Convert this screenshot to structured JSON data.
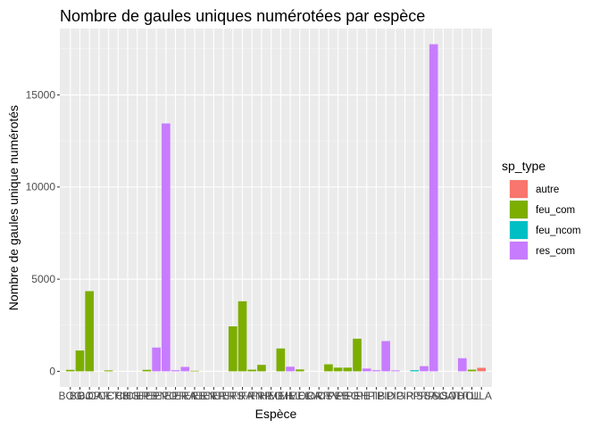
{
  "chart_data": {
    "type": "bar",
    "title": "Nombre de gaules uniques numérotées par espèce",
    "xlabel": "Espèce",
    "ylabel": "Nombre de gaules unique numérotés",
    "ylim": [
      -850,
      18600
    ],
    "y_ticks": [
      0,
      5000,
      10000,
      15000
    ],
    "y_tick_labels": [
      "0",
      "5000",
      "10000",
      "15000"
    ],
    "grid": true,
    "legend": {
      "title": "sp_type",
      "position": "right",
      "items": [
        {
          "key": "autre",
          "label": "autre",
          "color": "#F8766D"
        },
        {
          "key": "feu_com",
          "label": "feu_com",
          "color": "#7CAE00"
        },
        {
          "key": "feu_ncom",
          "label": "feu_ncom",
          "color": "#00BFC4"
        },
        {
          "key": "res_com",
          "label": "res_com",
          "color": "#C77CFF"
        }
      ]
    },
    "categories": [
      "BOG",
      "BOJ",
      "BOP",
      "CAF",
      "CET",
      "CHB",
      "CHG",
      "CHR",
      "EPB",
      "EPN",
      "EPO",
      "EPR",
      "ERA",
      "ERE",
      "ERN",
      "ERP",
      "ERR",
      "ERS",
      "FRA",
      "FRN",
      "FRP",
      "HEG",
      "MEH",
      "MEJ",
      "MEL",
      "ORA",
      "ORR",
      "OSV",
      "PEB",
      "PEG",
      "PEH",
      "PET",
      "PIB",
      "PID",
      "PIG",
      "PIR",
      "PIS",
      "PRP",
      "SAL",
      "SOA",
      "SOD",
      "THO",
      "TIL",
      "ULA"
    ],
    "bars": [
      {
        "category": "BOG",
        "value": 80,
        "type": "feu_com"
      },
      {
        "category": "BOJ",
        "value": 1130,
        "type": "feu_com"
      },
      {
        "category": "BOP",
        "value": 4350,
        "type": "feu_com"
      },
      {
        "category": "CAF",
        "value": 0,
        "type": "feu_com"
      },
      {
        "category": "CET",
        "value": 50,
        "type": "feu_com"
      },
      {
        "category": "CHB",
        "value": 0,
        "type": "feu_com"
      },
      {
        "category": "CHG",
        "value": 0,
        "type": "feu_com"
      },
      {
        "category": "CHR",
        "value": 0,
        "type": "feu_com"
      },
      {
        "category": "EPB",
        "value": 80,
        "type": "feu_com"
      },
      {
        "category": "EPN",
        "value": 1290,
        "type": "res_com"
      },
      {
        "category": "EPO",
        "value": 13450,
        "type": "res_com"
      },
      {
        "category": "EPR",
        "value": 60,
        "type": "res_com"
      },
      {
        "category": "ERA",
        "value": 240,
        "type": "res_com"
      },
      {
        "category": "ERE",
        "value": 30,
        "type": "feu_com"
      },
      {
        "category": "ERN",
        "value": 0,
        "type": "feu_com"
      },
      {
        "category": "ERP",
        "value": 0,
        "type": "feu_com"
      },
      {
        "category": "ERR",
        "value": 0,
        "type": "feu_com"
      },
      {
        "category": "ERS",
        "value": 2440,
        "type": "feu_com"
      },
      {
        "category": "FRA",
        "value": 3800,
        "type": "feu_com"
      },
      {
        "category": "FRN",
        "value": 90,
        "type": "feu_com"
      },
      {
        "category": "FRP",
        "value": 350,
        "type": "feu_com"
      },
      {
        "category": "HEG",
        "value": 0,
        "type": "feu_com"
      },
      {
        "category": "MEH",
        "value": 1240,
        "type": "feu_com"
      },
      {
        "category": "MEJ",
        "value": 250,
        "type": "res_com"
      },
      {
        "category": "MEL",
        "value": 100,
        "type": "feu_com"
      },
      {
        "category": "ORA",
        "value": 0,
        "type": "feu_com"
      },
      {
        "category": "ORR",
        "value": 0,
        "type": "feu_com"
      },
      {
        "category": "OSV",
        "value": 380,
        "type": "feu_com"
      },
      {
        "category": "PEB",
        "value": 200,
        "type": "feu_com"
      },
      {
        "category": "PEG",
        "value": 200,
        "type": "feu_com"
      },
      {
        "category": "PEH",
        "value": 1770,
        "type": "feu_com"
      },
      {
        "category": "PET",
        "value": 150,
        "type": "res_com"
      },
      {
        "category": "PIB",
        "value": 60,
        "type": "res_com"
      },
      {
        "category": "PID",
        "value": 1640,
        "type": "res_com"
      },
      {
        "category": "PIG",
        "value": 50,
        "type": "res_com"
      },
      {
        "category": "PIR",
        "value": 0,
        "type": "res_com"
      },
      {
        "category": "PIS",
        "value": 60,
        "type": "feu_ncom"
      },
      {
        "category": "PRP",
        "value": 280,
        "type": "res_com"
      },
      {
        "category": "SAL",
        "value": 17750,
        "type": "res_com"
      },
      {
        "category": "SOA",
        "value": 0,
        "type": "feu_com"
      },
      {
        "category": "SOD",
        "value": 0,
        "type": "feu_com"
      },
      {
        "category": "THO",
        "value": 710,
        "type": "res_com"
      },
      {
        "category": "TIL",
        "value": 90,
        "type": "feu_com"
      },
      {
        "category": "ULA",
        "value": 190,
        "type": "autre"
      }
    ]
  }
}
